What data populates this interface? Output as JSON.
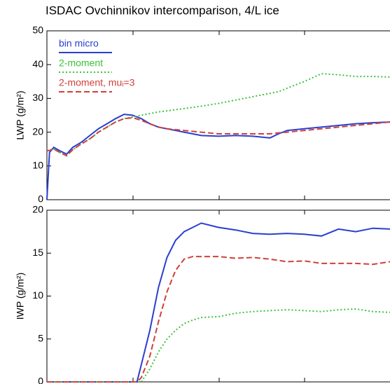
{
  "chart_data": [
    {
      "type": "line",
      "title": "ISDAC Ovchinnikov intercomparison, 4/L ice",
      "y_label": "LWP (g/m²)",
      "x": [
        0,
        0.3,
        0.8,
        1.5,
        2.3,
        3,
        4,
        5,
        6,
        7,
        8,
        9,
        10,
        11,
        12,
        13,
        14,
        16,
        18,
        20,
        22,
        24,
        26,
        27,
        28,
        30,
        32,
        34,
        36,
        38,
        40
      ],
      "xlim": [
        0,
        40
      ],
      "ylim": [
        0,
        50
      ],
      "yticks": [
        0,
        10,
        20,
        30,
        40,
        50
      ],
      "series": [
        {
          "name": "bin micro",
          "color": "#2a3fd0",
          "style": "solid",
          "values": [
            0,
            14,
            15.5,
            14.5,
            13.5,
            15.5,
            17,
            19,
            21,
            22.5,
            24,
            25.3,
            25,
            24,
            22.5,
            21.5,
            21,
            20,
            19,
            18.8,
            19,
            18.8,
            18.3,
            19.5,
            20.5,
            21,
            21.5,
            22,
            22.5,
            22.8,
            23
          ]
        },
        {
          "name": "2-moment",
          "color": "#3cc23c",
          "style": "dotted",
          "values": [
            14.5,
            14.6,
            15,
            14,
            13,
            14.8,
            16.5,
            18,
            20,
            21.5,
            23,
            24,
            24.5,
            25,
            25.5,
            26,
            26.3,
            27,
            27.7,
            28.5,
            29.5,
            30.5,
            31.5,
            32,
            33,
            35,
            37.3,
            37,
            36.5,
            36.5,
            36.3
          ]
        },
        {
          "name": "2-moment, muᵢ=3",
          "color": "#d0403a",
          "style": "dashed",
          "values": [
            14.5,
            14.6,
            15,
            14,
            13,
            14.8,
            16.5,
            18,
            20,
            21.5,
            23,
            24,
            24.3,
            23.5,
            22.5,
            21.5,
            21,
            20.5,
            20,
            19.5,
            19.5,
            19.5,
            19.5,
            19.8,
            20,
            20.5,
            21,
            21.5,
            22,
            22.5,
            23
          ]
        }
      ]
    },
    {
      "type": "line",
      "y_label": "IWP (g/m²)",
      "x": [
        0,
        10,
        10.5,
        11,
        12,
        13,
        14,
        15,
        16,
        17,
        18,
        20,
        22,
        24,
        26,
        28,
        30,
        32,
        34,
        36,
        38,
        40
      ],
      "xlim": [
        0,
        40
      ],
      "ylim": [
        0,
        20
      ],
      "yticks": [
        0,
        5,
        10,
        15,
        20
      ],
      "series": [
        {
          "name": "bin micro",
          "color": "#2a3fd0",
          "style": "solid",
          "values": [
            0,
            0,
            0,
            2,
            6,
            11,
            14.5,
            16.5,
            17.5,
            18,
            18.5,
            18,
            17.7,
            17.3,
            17.2,
            17.3,
            17.2,
            17,
            17.8,
            17.5,
            17.9,
            17.8
          ]
        },
        {
          "name": "2-moment",
          "color": "#3cc23c",
          "style": "dotted",
          "values": [
            0,
            0,
            0,
            0,
            1.5,
            3.5,
            5,
            6,
            6.8,
            7.2,
            7.5,
            7.6,
            8,
            8.2,
            8.3,
            8.4,
            8.3,
            8.2,
            8.4,
            8.5,
            8.2,
            8.1
          ]
        },
        {
          "name": "2-moment, muᵢ=3",
          "color": "#d0403a",
          "style": "dashed",
          "values": [
            0,
            0,
            0,
            0.5,
            3,
            7,
            10.5,
            13,
            14.3,
            14.6,
            14.6,
            14.6,
            14.4,
            14.5,
            14.3,
            14,
            14.1,
            13.8,
            13.8,
            13.8,
            13.7,
            14
          ]
        }
      ]
    }
  ]
}
